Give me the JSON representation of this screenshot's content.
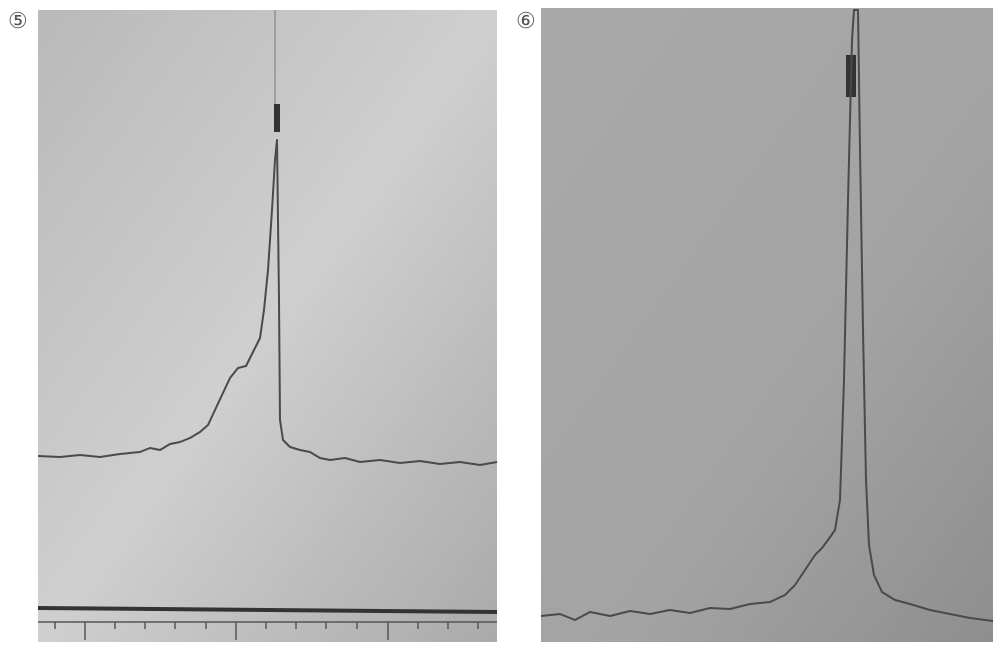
{
  "panels": [
    {
      "label": "⑤"
    },
    {
      "label": "⑥"
    }
  ]
}
